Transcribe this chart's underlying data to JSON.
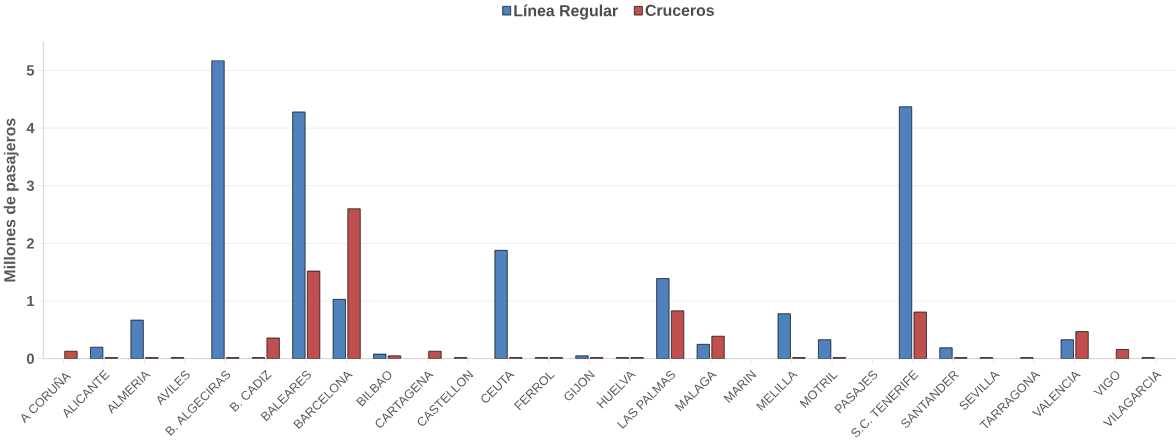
{
  "chart_data": {
    "type": "bar",
    "ylabel": "Millones de pasajeros",
    "categories": [
      "A CORUÑA",
      "ALICANTE",
      "ALMERIA",
      "AVILES",
      "B. ALGECIRAS",
      "B. CADIZ",
      "BALEARES",
      "BARCELONA",
      "BILBAO",
      "CARTAGENA",
      "CASTELLON",
      "CEUTA",
      "FERROL",
      "GIJON",
      "HUELVA",
      "LAS PALMAS",
      "MALAGA",
      "MARIN",
      "MELILLA",
      "MOTRIL",
      "PASAJES",
      "S.C. TENERIFE",
      "SANTANDER",
      "SEVILLA",
      "TARRAGONA",
      "VALENCIA",
      "VIGO",
      "VILAGARCIA"
    ],
    "series": [
      {
        "name": "Línea Regular",
        "color": "#4f81bd",
        "values": [
          0,
          0.2,
          0.67,
          0.02,
          5.17,
          0.02,
          4.28,
          1.03,
          0.08,
          0,
          0.02,
          1.88,
          0.02,
          0.05,
          0.02,
          1.39,
          0.25,
          0,
          0.78,
          0.33,
          0,
          4.37,
          0.19,
          0.02,
          0.02,
          0.33,
          0,
          0.02
        ]
      },
      {
        "name": "Cruceros",
        "color": "#c0504d",
        "values": [
          0.13,
          0.02,
          0.02,
          0,
          0.02,
          0.36,
          1.52,
          2.6,
          0.05,
          0.13,
          0,
          0.02,
          0.02,
          0.02,
          0.02,
          0.83,
          0.39,
          0,
          0.02,
          0.02,
          0,
          0.81,
          0.02,
          0,
          0,
          0.47,
          0.16,
          0
        ]
      }
    ],
    "ylim": [
      0,
      5.5
    ],
    "yticks": [
      0,
      1,
      2,
      3,
      4,
      5
    ],
    "grid": "y",
    "legend": "top"
  }
}
